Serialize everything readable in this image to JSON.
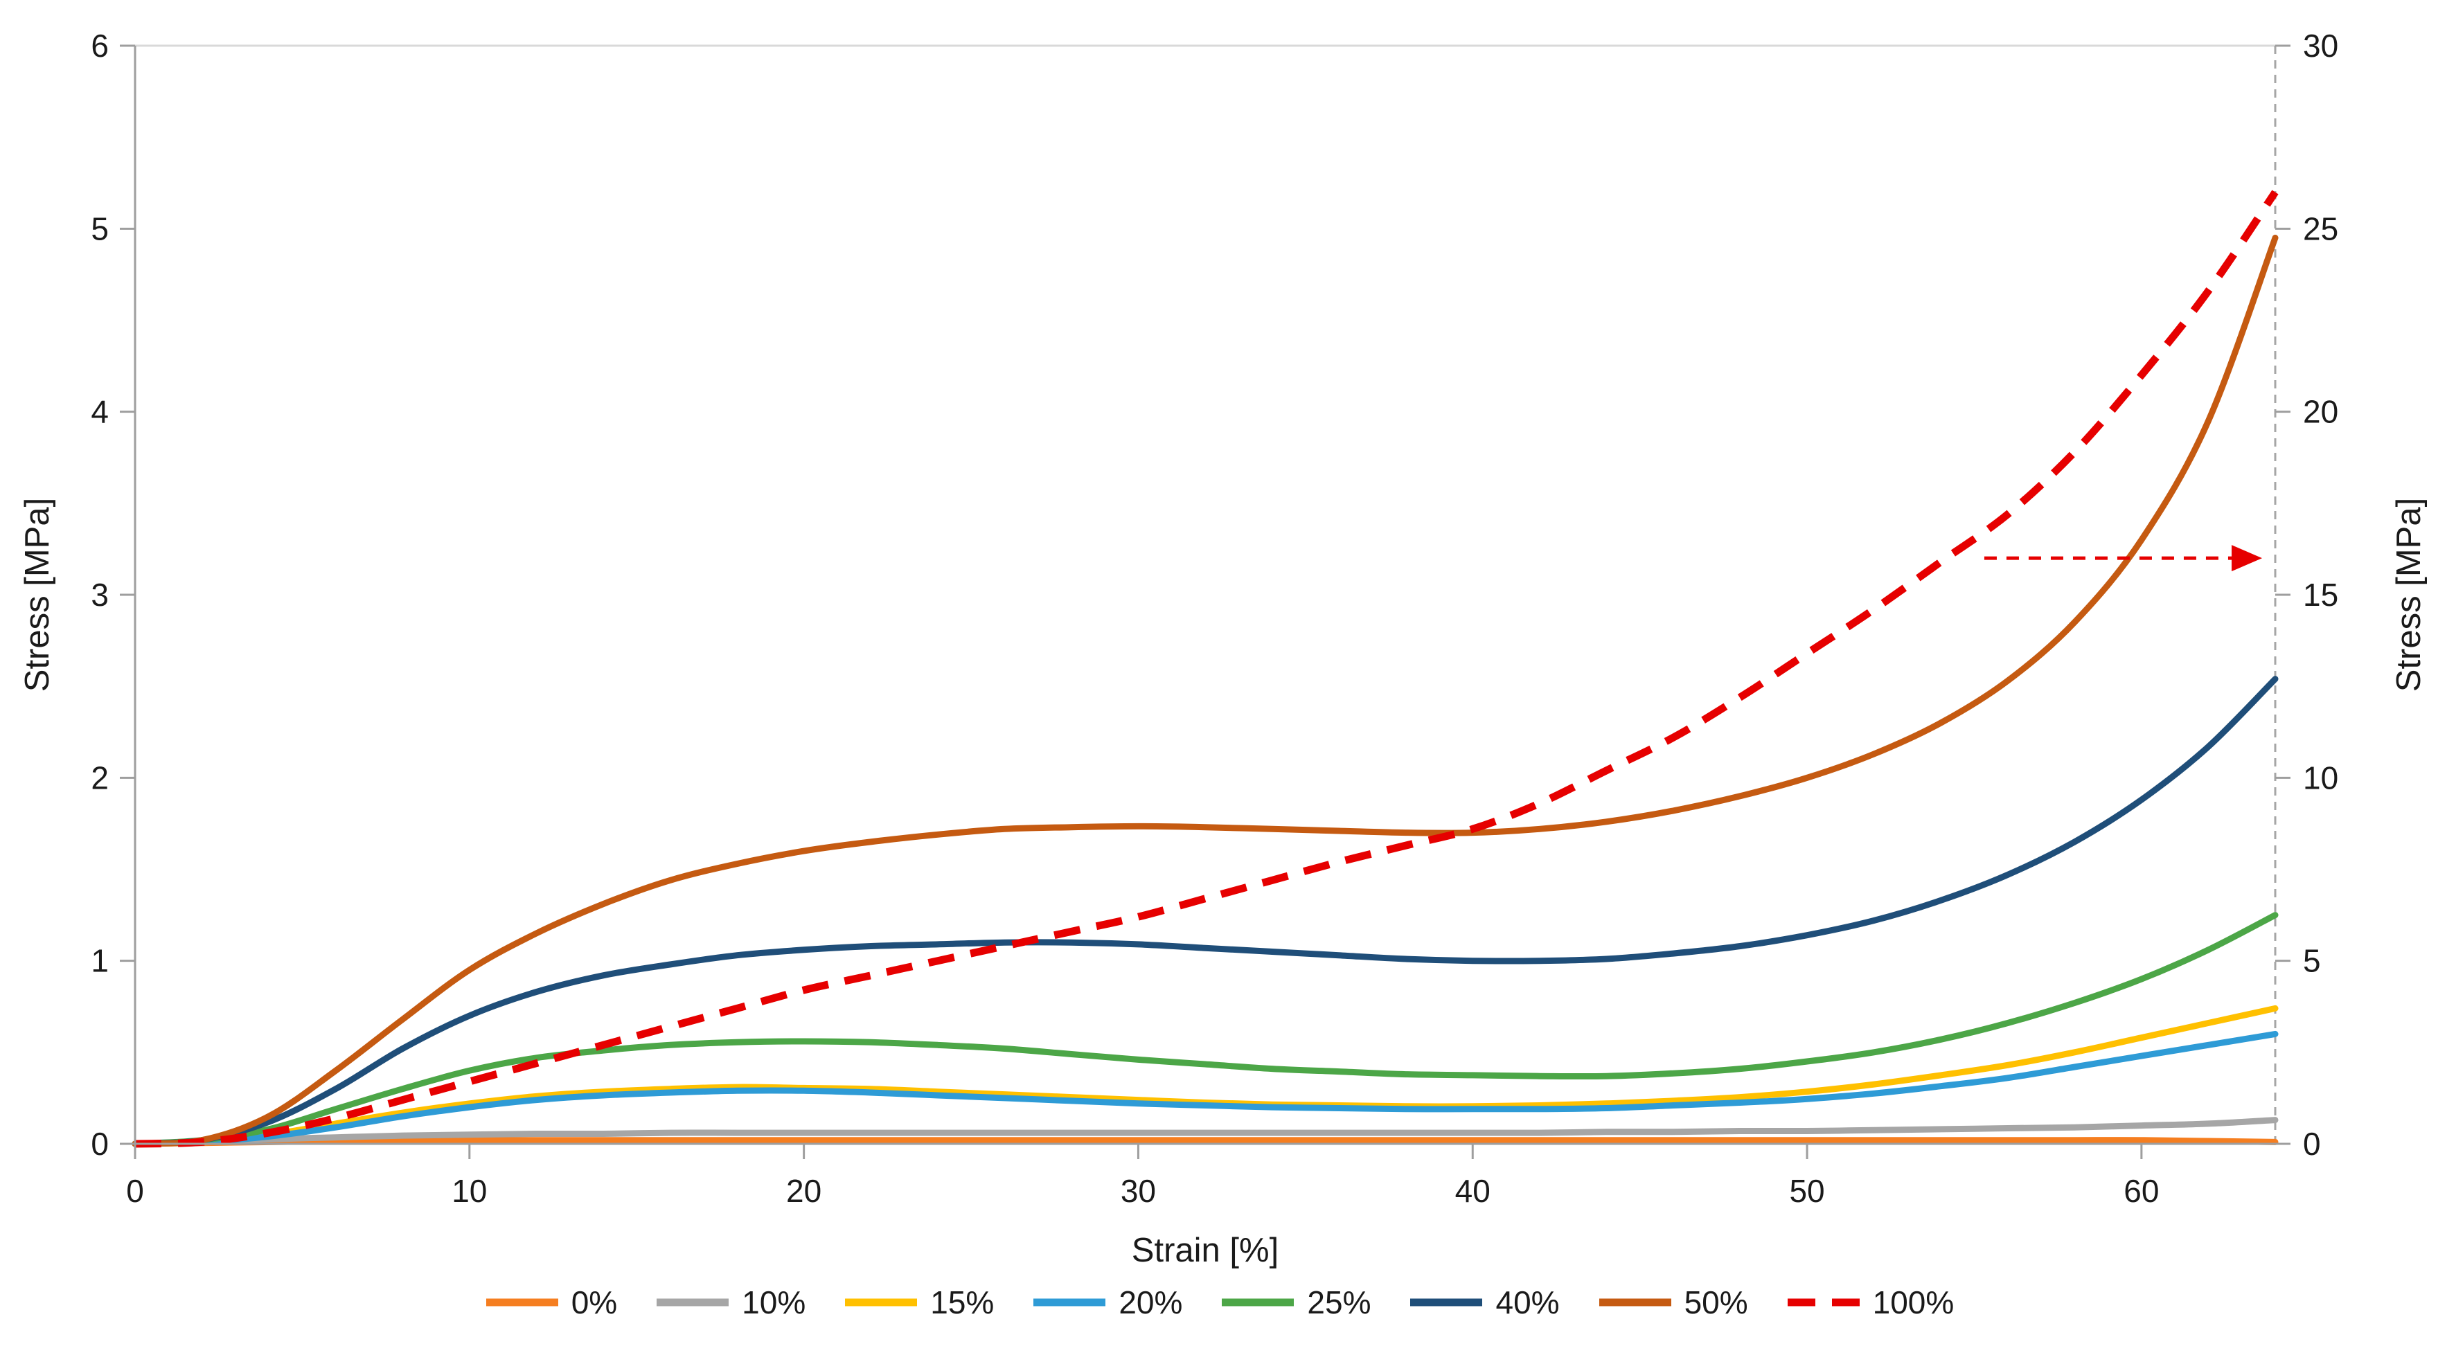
{
  "chart_data": {
    "type": "line",
    "title": "",
    "xlabel": "Strain [%]",
    "ylabel_left": "Stress [MPa]",
    "ylabel_right": "Stress [MPa]",
    "x_range": [
      0,
      64
    ],
    "y_left_range": [
      0,
      6
    ],
    "y_right_range": [
      0,
      30
    ],
    "x_ticks": [
      0,
      10,
      20,
      30,
      40,
      50,
      60
    ],
    "y_left_ticks": [
      0,
      1,
      2,
      3,
      4,
      5,
      6
    ],
    "y_right_ticks": [
      0,
      5,
      10,
      15,
      20,
      25,
      30
    ],
    "grid": false,
    "legend_position": "bottom",
    "x": [
      0,
      2,
      4,
      6,
      8,
      10,
      12,
      14,
      16,
      18,
      20,
      22,
      24,
      26,
      28,
      30,
      32,
      34,
      36,
      38,
      40,
      42,
      44,
      46,
      48,
      50,
      52,
      54,
      56,
      58,
      60,
      62,
      64
    ],
    "series": [
      {
        "name": "0%",
        "color": "#F57E20",
        "axis": "left",
        "dash": "solid",
        "values": [
          0,
          0.005,
          0.01,
          0.015,
          0.018,
          0.02,
          0.02,
          0.02,
          0.02,
          0.02,
          0.02,
          0.02,
          0.02,
          0.02,
          0.02,
          0.02,
          0.02,
          0.02,
          0.02,
          0.02,
          0.02,
          0.02,
          0.02,
          0.02,
          0.02,
          0.02,
          0.02,
          0.02,
          0.02,
          0.02,
          0.02,
          0.015,
          0.01
        ]
      },
      {
        "name": "10%",
        "color": "#A6A6A6",
        "axis": "left",
        "dash": "solid",
        "values": [
          0,
          0.01,
          0.025,
          0.035,
          0.045,
          0.05,
          0.055,
          0.055,
          0.06,
          0.06,
          0.06,
          0.06,
          0.06,
          0.06,
          0.06,
          0.06,
          0.06,
          0.06,
          0.06,
          0.06,
          0.06,
          0.06,
          0.065,
          0.065,
          0.07,
          0.07,
          0.075,
          0.08,
          0.085,
          0.09,
          0.1,
          0.11,
          0.13
        ]
      },
      {
        "name": "15%",
        "color": "#FFC000",
        "axis": "left",
        "dash": "solid",
        "values": [
          0,
          0.01,
          0.05,
          0.11,
          0.17,
          0.22,
          0.26,
          0.285,
          0.3,
          0.31,
          0.305,
          0.3,
          0.285,
          0.27,
          0.255,
          0.24,
          0.225,
          0.215,
          0.21,
          0.205,
          0.205,
          0.21,
          0.22,
          0.235,
          0.255,
          0.285,
          0.325,
          0.375,
          0.43,
          0.5,
          0.58,
          0.66,
          0.74
        ]
      },
      {
        "name": "20%",
        "color": "#2E9BD6",
        "axis": "left",
        "dash": "solid",
        "values": [
          0,
          0.01,
          0.04,
          0.09,
          0.15,
          0.2,
          0.24,
          0.265,
          0.28,
          0.29,
          0.29,
          0.28,
          0.265,
          0.25,
          0.235,
          0.22,
          0.21,
          0.2,
          0.195,
          0.19,
          0.19,
          0.19,
          0.195,
          0.21,
          0.225,
          0.245,
          0.275,
          0.315,
          0.36,
          0.42,
          0.48,
          0.54,
          0.6
        ]
      },
      {
        "name": "25%",
        "color": "#4CA647",
        "axis": "left",
        "dash": "solid",
        "values": [
          0,
          0.02,
          0.08,
          0.19,
          0.3,
          0.4,
          0.47,
          0.51,
          0.54,
          0.555,
          0.56,
          0.555,
          0.54,
          0.52,
          0.49,
          0.46,
          0.435,
          0.41,
          0.395,
          0.38,
          0.375,
          0.37,
          0.37,
          0.385,
          0.41,
          0.45,
          0.5,
          0.57,
          0.66,
          0.77,
          0.9,
          1.06,
          1.25
        ]
      },
      {
        "name": "40%",
        "color": "#1F4E79",
        "axis": "left",
        "dash": "solid",
        "values": [
          0,
          0.02,
          0.12,
          0.3,
          0.52,
          0.7,
          0.83,
          0.92,
          0.98,
          1.03,
          1.06,
          1.08,
          1.09,
          1.1,
          1.1,
          1.09,
          1.07,
          1.05,
          1.03,
          1.01,
          1.0,
          1.0,
          1.01,
          1.04,
          1.08,
          1.14,
          1.22,
          1.33,
          1.47,
          1.65,
          1.88,
          2.17,
          2.54
        ]
      },
      {
        "name": "50%",
        "color": "#C55A11",
        "axis": "left",
        "dash": "solid",
        "values": [
          0,
          0.02,
          0.15,
          0.4,
          0.68,
          0.95,
          1.15,
          1.31,
          1.44,
          1.53,
          1.6,
          1.65,
          1.69,
          1.72,
          1.73,
          1.735,
          1.73,
          1.72,
          1.71,
          1.7,
          1.7,
          1.72,
          1.76,
          1.82,
          1.9,
          2.0,
          2.13,
          2.3,
          2.53,
          2.85,
          3.3,
          3.95,
          4.95
        ]
      },
      {
        "name": "100%",
        "color": "#E60000",
        "axis": "right",
        "dash": "dashed",
        "values": [
          0,
          0.05,
          0.3,
          0.7,
          1.2,
          1.7,
          2.2,
          2.7,
          3.2,
          3.7,
          4.2,
          4.6,
          5.0,
          5.4,
          5.8,
          6.2,
          6.7,
          7.2,
          7.7,
          8.15,
          8.6,
          9.3,
          10.2,
          11.1,
          12.2,
          13.4,
          14.6,
          15.9,
          17.2,
          18.9,
          21.0,
          23.3,
          26.0
        ]
      }
    ],
    "annotations": {
      "right_axis_guide": {
        "x": 64,
        "style": "dashed",
        "color": "#A6A6A6"
      },
      "arrow_to_right_axis": {
        "y_right": 16,
        "x_start": 55.3,
        "x_end": 63.4,
        "color": "#E60000",
        "style": "dashed"
      }
    },
    "axis_color": "#9E9E9E",
    "top_border_color": "#D9D9D9",
    "tick_label_color": "#1a1a1a"
  }
}
